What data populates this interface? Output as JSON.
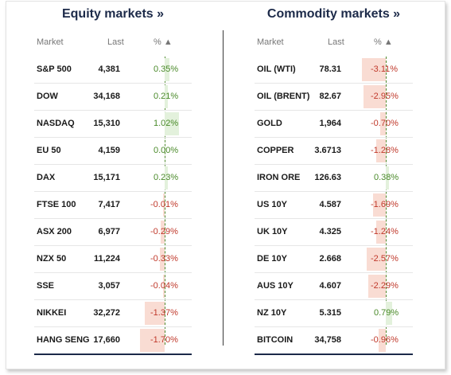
{
  "equity": {
    "title": "Equity markets »",
    "headers": {
      "market": "Market",
      "last": "Last",
      "pct": "% ▲"
    },
    "rows": [
      {
        "name": "S&P 500",
        "last": "4,381",
        "pct": "0.35%",
        "value": 0.35
      },
      {
        "name": "DOW",
        "last": "34,168",
        "pct": "0.21%",
        "value": 0.21
      },
      {
        "name": "NASDAQ",
        "last": "15,310",
        "pct": "1.02%",
        "value": 1.02
      },
      {
        "name": "EU 50",
        "last": "4,159",
        "pct": "0.00%",
        "value": 0.0
      },
      {
        "name": "DAX",
        "last": "15,171",
        "pct": "0.23%",
        "value": 0.23
      },
      {
        "name": "FTSE 100",
        "last": "7,417",
        "pct": "-0.01%",
        "value": -0.01
      },
      {
        "name": "ASX 200",
        "last": "6,977",
        "pct": "-0.29%",
        "value": -0.29
      },
      {
        "name": "NZX 50",
        "last": "11,224",
        "pct": "-0.33%",
        "value": -0.33
      },
      {
        "name": "SSE",
        "last": "3,057",
        "pct": "-0.04%",
        "value": -0.04
      },
      {
        "name": "NIKKEI",
        "last": "32,272",
        "pct": "-1.37%",
        "value": -1.37
      },
      {
        "name": "HANG SENG",
        "last": "17,660",
        "pct": "-1.70%",
        "value": -1.7
      }
    ]
  },
  "commodity": {
    "title": "Commodity markets »",
    "headers": {
      "market": "Market",
      "last": "Last",
      "pct": "% ▲"
    },
    "rows": [
      {
        "name": "OIL (WTI)",
        "last": "78.31",
        "pct": "-3.11%",
        "value": -3.11
      },
      {
        "name": "OIL (BRENT)",
        "last": "82.67",
        "pct": "-2.95%",
        "value": -2.95
      },
      {
        "name": "GOLD",
        "last": "1,964",
        "pct": "-0.70%",
        "value": -0.7
      },
      {
        "name": "COPPER",
        "last": "3.6713",
        "pct": "-1.28%",
        "value": -1.28
      },
      {
        "name": "IRON ORE",
        "last": "126.63",
        "pct": "0.38%",
        "value": 0.38
      },
      {
        "name": "US 10Y",
        "last": "4.587",
        "pct": "-1.69%",
        "value": -1.69
      },
      {
        "name": "UK 10Y",
        "last": "4.325",
        "pct": "-1.24%",
        "value": -1.24
      },
      {
        "name": "DE 10Y",
        "last": "2.668",
        "pct": "-2.57%",
        "value": -2.57
      },
      {
        "name": "AUS 10Y",
        "last": "4.607",
        "pct": "-2.29%",
        "value": -2.29
      },
      {
        "name": "NZ 10Y",
        "last": "5.315",
        "pct": "0.79%",
        "value": 0.79
      },
      {
        "name": "BITCOIN",
        "last": "34,758",
        "pct": "-0.96%",
        "value": -0.96
      }
    ]
  },
  "colors": {
    "title": "#1c2a49",
    "positive": "#4a8a2a",
    "negative": "#c0392b",
    "posFill": "#e3f1dc",
    "negFill": "#f9dcd3"
  }
}
